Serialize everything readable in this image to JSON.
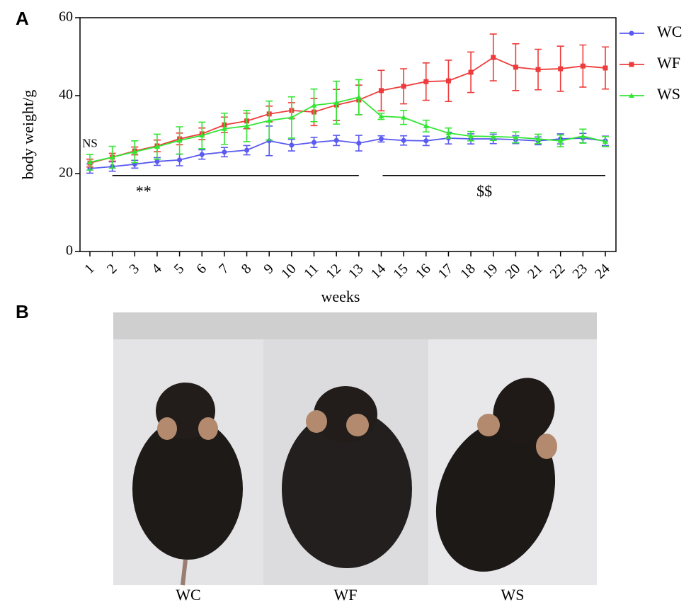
{
  "panel_labels": [
    "A",
    "B"
  ],
  "chart_data": {
    "type": "line",
    "ylabel": "body weight/g",
    "xlabel": "weeks",
    "categories": [
      "1",
      "2",
      "3",
      "4",
      "5",
      "6",
      "7",
      "8",
      "9",
      "10",
      "11",
      "12",
      "13",
      "14",
      "15",
      "16",
      "17",
      "18",
      "19",
      "20",
      "21",
      "22",
      "23",
      "24"
    ],
    "ylim": [
      0,
      60
    ],
    "yticks": [
      0,
      20,
      40,
      60
    ],
    "series": [
      {
        "name": "WC",
        "color": "#5a5af0",
        "marker": "circle",
        "values": [
          21.3,
          21.8,
          22.4,
          23.1,
          23.5,
          24.9,
          25.5,
          26.0,
          28.4,
          27.3,
          28.0,
          28.5,
          27.8,
          28.9,
          28.5,
          28.4,
          29.1,
          28.9,
          28.9,
          28.7,
          28.4,
          28.9,
          29.1,
          28.4
        ],
        "errors": [
          1.2,
          1.2,
          1.0,
          1.0,
          1.5,
          1.2,
          1.2,
          1.2,
          3.8,
          1.5,
          1.3,
          1.3,
          2.0,
          0.8,
          1.2,
          1.2,
          1.5,
          1.3,
          1.2,
          1.0,
          1.0,
          1.3,
          1.2,
          1.2
        ]
      },
      {
        "name": "WF",
        "color": "#ee3b3b",
        "marker": "square",
        "values": [
          22.7,
          24.2,
          25.8,
          27.1,
          28.9,
          30.2,
          32.5,
          33.5,
          35.3,
          36.2,
          35.8,
          37.6,
          38.9,
          41.3,
          42.4,
          43.6,
          43.8,
          46.0,
          49.8,
          47.3,
          46.7,
          46.9,
          47.6,
          47.1
        ],
        "errors": [
          1.0,
          1.0,
          1.0,
          1.5,
          1.5,
          1.5,
          2.0,
          2.0,
          2.0,
          2.0,
          3.5,
          4.0,
          3.8,
          5.2,
          4.5,
          4.8,
          5.3,
          5.2,
          6.0,
          6.0,
          5.2,
          5.8,
          5.4,
          5.4
        ]
      },
      {
        "name": "WS",
        "color": "#33e633",
        "marker": "triangle",
        "values": [
          22.9,
          24.2,
          25.6,
          26.9,
          28.5,
          29.8,
          31.5,
          32.2,
          33.6,
          34.4,
          37.5,
          38.2,
          39.6,
          34.7,
          34.4,
          32.2,
          30.4,
          29.6,
          29.5,
          29.3,
          28.9,
          28.4,
          29.6,
          28.2
        ],
        "errors": [
          2.0,
          2.8,
          2.8,
          3.2,
          3.5,
          3.4,
          4.0,
          4.0,
          5.0,
          5.3,
          4.2,
          5.5,
          4.5,
          0.8,
          1.8,
          1.5,
          1.3,
          1.2,
          1.0,
          1.4,
          1.2,
          1.5,
          1.8,
          1.3
        ]
      }
    ],
    "annotations": [
      "NS",
      "**",
      "$$"
    ]
  },
  "photos": {
    "labels": [
      "WC",
      "WF",
      "WS"
    ]
  }
}
